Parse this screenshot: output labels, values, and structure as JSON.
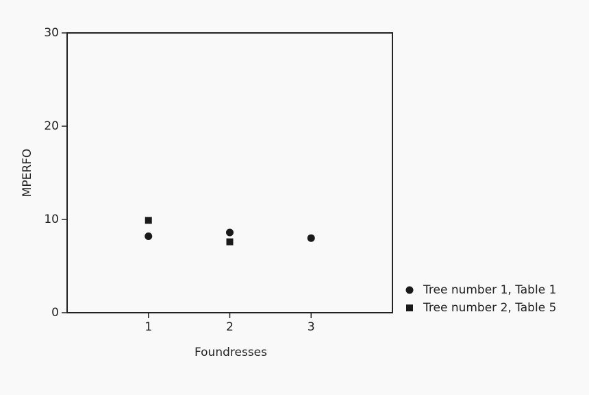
{
  "chart_data": {
    "type": "scatter",
    "x_label": "Foundresses",
    "y_label": "MPERFO",
    "xlim": [
      0,
      4
    ],
    "xticks": [
      1,
      2,
      3
    ],
    "ylim": [
      0,
      30
    ],
    "yticks": [
      0,
      10,
      20,
      30
    ],
    "grid": false,
    "legend": "right",
    "series": [
      {
        "name": "Tree number 1, Table 1",
        "color": "#1a1a1a",
        "marker": "circle",
        "x": [
          1,
          2,
          3
        ],
        "values": [
          8.2,
          8.6,
          8.0
        ]
      },
      {
        "name": "Tree number 2, Table 5",
        "color": "#1a1a1a",
        "marker": "square",
        "x": [
          1,
          2
        ],
        "values": [
          9.9,
          7.6
        ]
      }
    ]
  }
}
